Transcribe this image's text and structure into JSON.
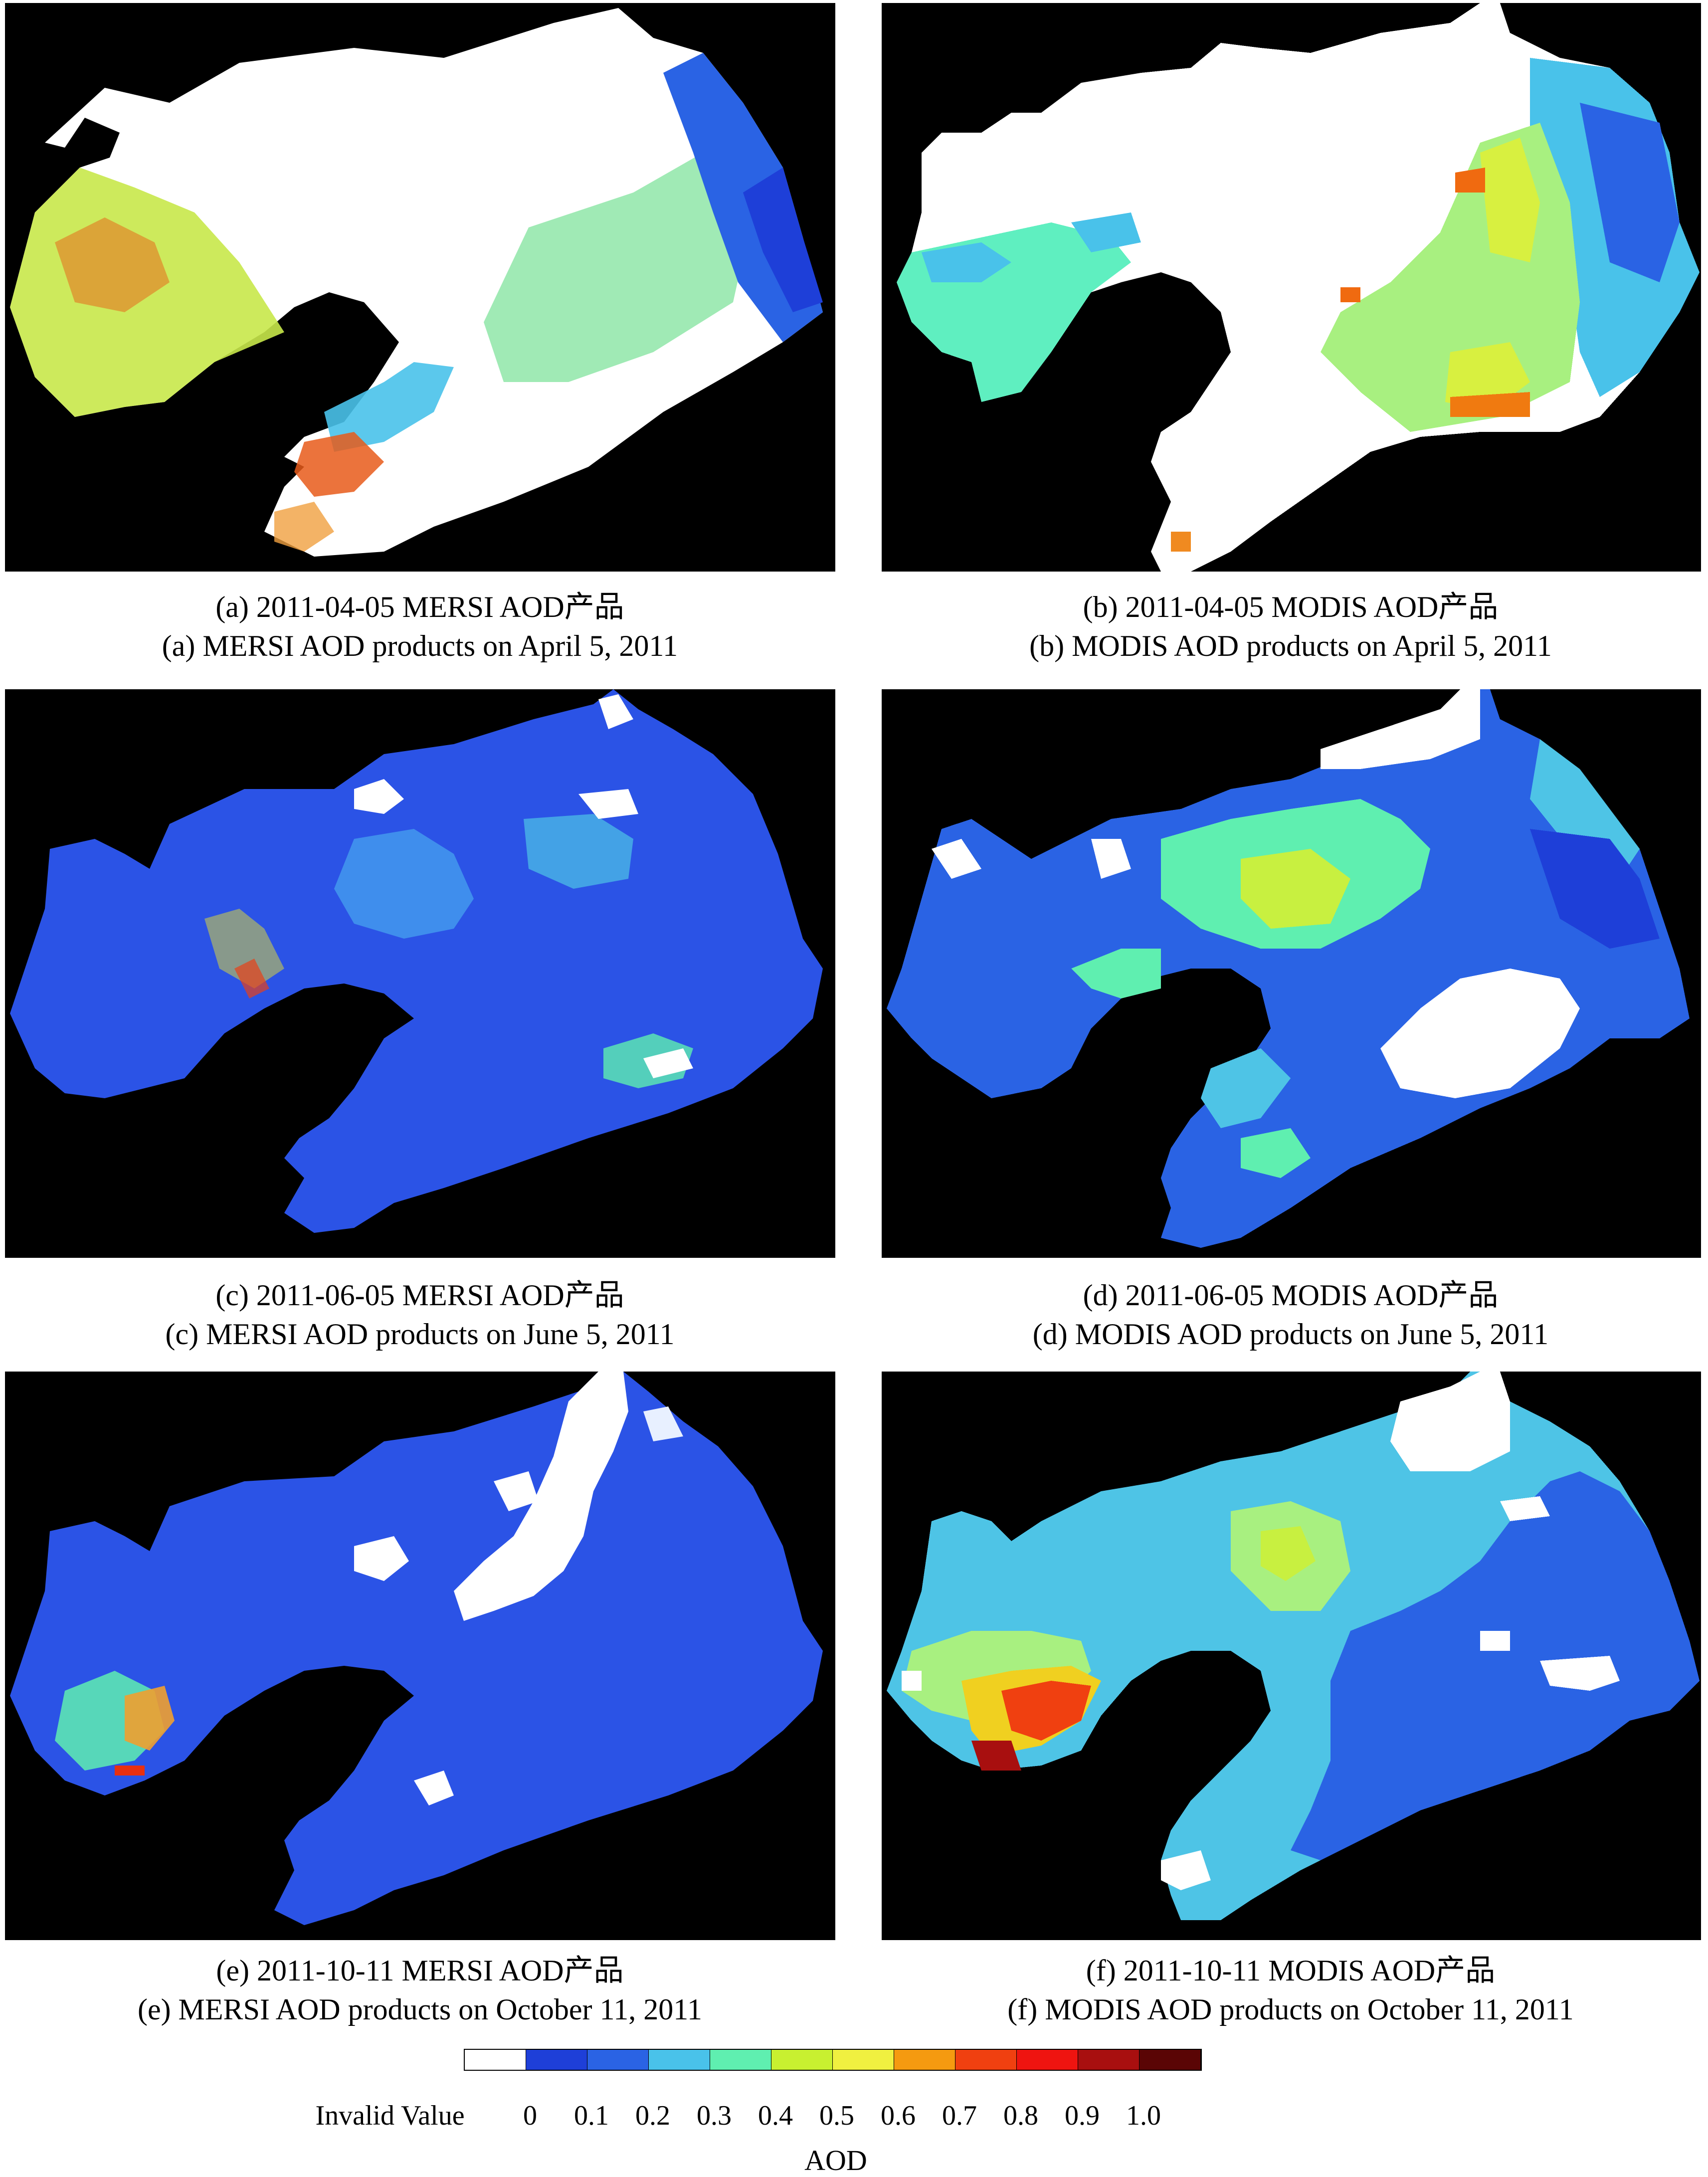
{
  "panels": [
    {
      "id": "a",
      "caption_cn": "(a) 2011-04-05 MERSI AOD产品",
      "caption_en": "(a) MERSI AOD products on April 5, 2011",
      "sensor": "MERSI",
      "dominant_color": "#ffffff"
    },
    {
      "id": "b",
      "caption_cn": "(b) 2011-04-05 MODIS AOD产品",
      "caption_en": "(b) MODIS AOD products on April 5, 2011",
      "sensor": "MODIS",
      "dominant_color": "#ffffff"
    },
    {
      "id": "c",
      "caption_cn": "(c) 2011-06-05 MERSI AOD产品",
      "caption_en": "(c) MERSI AOD products on June 5, 2011",
      "sensor": "MERSI",
      "dominant_color": "#2b53e6"
    },
    {
      "id": "d",
      "caption_cn": "(d) 2011-06-05 MODIS AOD产品",
      "caption_en": "(d) MODIS AOD products on June 5, 2011",
      "sensor": "MODIS",
      "dominant_color": "#2a63e4"
    },
    {
      "id": "e",
      "caption_cn": "(e) 2011-10-11 MERSI AOD产品",
      "caption_en": "(e) MERSI AOD products on October 11, 2011",
      "sensor": "MERSI",
      "dominant_color": "#2b53e6"
    },
    {
      "id": "f",
      "caption_cn": "(f) 2011-10-11 MODIS AOD产品",
      "caption_en": "(f) MODIS AOD products on October 11, 2011",
      "sensor": "MODIS",
      "dominant_color": "#4ec4e6"
    }
  ],
  "legend": {
    "title": "AOD",
    "invalid_label": "Invalid Value",
    "ticks": [
      "0",
      "0.1",
      "0.2",
      "0.3",
      "0.4",
      "0.5",
      "0.6",
      "0.7",
      "0.8",
      "0.9",
      "1.0"
    ],
    "colors": [
      "#ffffff",
      "#1e3fd8",
      "#2a63e4",
      "#49c2ea",
      "#5fefb0",
      "#c8f030",
      "#f0f040",
      "#f59a10",
      "#f04010",
      "#ef1410",
      "#a80f0f",
      "#5a0505"
    ]
  }
}
